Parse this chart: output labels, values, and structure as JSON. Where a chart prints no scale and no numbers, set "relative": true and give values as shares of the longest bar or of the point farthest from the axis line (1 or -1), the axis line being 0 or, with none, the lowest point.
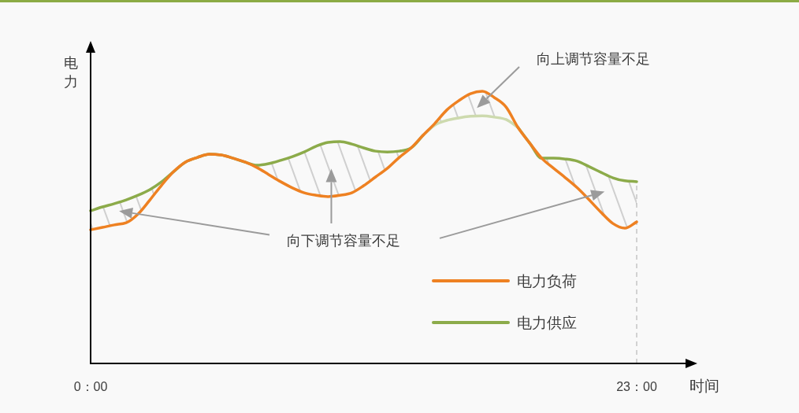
{
  "chart_data": {
    "type": "line",
    "relative": true,
    "xlabel": "时间",
    "ylabel": "电力",
    "tick_labels": "x",
    "legend": "bottom right",
    "categories": [
      "0：00",
      null,
      null,
      null,
      null,
      null,
      null,
      null,
      null,
      null,
      null,
      null,
      null,
      null,
      null,
      null,
      null,
      null,
      null,
      null,
      null,
      null,
      null,
      null,
      null,
      null,
      null,
      null,
      null,
      null,
      null,
      null,
      null,
      null,
      null,
      null,
      null,
      null,
      null,
      null,
      null,
      null,
      null,
      null,
      null,
      null,
      "23：00"
    ],
    "series": [
      {
        "name": "电力负荷",
        "color": "#ee8122",
        "values": [
          0.491,
          0.5,
          0.509,
          0.517,
          0.549,
          0.601,
          0.656,
          0.705,
          0.74,
          0.757,
          0.769,
          0.766,
          0.754,
          0.74,
          0.72,
          0.694,
          0.668,
          0.645,
          0.627,
          0.618,
          0.613,
          0.618,
          0.627,
          0.653,
          0.685,
          0.717,
          0.757,
          0.792,
          0.838,
          0.882,
          0.931,
          0.965,
          0.991,
          1.0,
          0.977,
          0.942,
          0.867,
          0.809,
          0.754,
          0.717,
          0.682,
          0.645,
          0.601,
          0.555,
          0.514,
          0.497,
          0.52
        ]
      },
      {
        "name": "电力供应",
        "color": "#8cab4a",
        "values": [
          0.561,
          0.575,
          0.587,
          0.601,
          0.618,
          0.639,
          0.668,
          0.705,
          0.74,
          0.757,
          0.769,
          0.766,
          0.754,
          0.74,
          0.728,
          0.734,
          0.746,
          0.76,
          0.777,
          0.798,
          0.812,
          0.815,
          0.806,
          0.792,
          0.78,
          0.777,
          0.78,
          0.792,
          0.838,
          null,
          null,
          null,
          null,
          null,
          null,
          null,
          0.867,
          0.809,
          0.754,
          0.754,
          0.751,
          0.743,
          0.723,
          0.702,
          0.682,
          0.671,
          0.668
        ],
        "lower": [
          0.491,
          0.5,
          0.509,
          0.517,
          0.549,
          0.601,
          0.656,
          0.705,
          null,
          null,
          null,
          null,
          null,
          0.74,
          0.72,
          0.694,
          0.668,
          0.645,
          0.627,
          0.618,
          0.613,
          0.618,
          0.627,
          0.653,
          0.685,
          0.717,
          0.757,
          0.792,
          null,
          null,
          null,
          null,
          null,
          null,
          null,
          null,
          null,
          null,
          0.754,
          0.717,
          0.682,
          0.645,
          0.601,
          0.555,
          0.514,
          0.497,
          0.52
        ],
        "upper": [
          0.561,
          0.575,
          0.587,
          0.601,
          0.618,
          0.639,
          0.668,
          0.705,
          null,
          null,
          null,
          null,
          null,
          0.74,
          0.728,
          0.734,
          0.746,
          0.76,
          0.777,
          0.798,
          0.812,
          0.815,
          0.806,
          0.792,
          0.78,
          0.777,
          0.78,
          0.792,
          null,
          null,
          null,
          null,
          null,
          null,
          null,
          null,
          null,
          null,
          0.754,
          0.754,
          0.751,
          0.743,
          0.723,
          0.702,
          0.682,
          0.671,
          0.668
        ]
      },
      {
        "color": "#cddaae",
        "values": [
          null,
          null,
          null,
          null,
          null,
          null,
          null,
          null,
          null,
          null,
          null,
          null,
          null,
          null,
          null,
          null,
          null,
          null,
          null,
          null,
          null,
          null,
          null,
          null,
          null,
          null,
          null,
          null,
          0.838,
          0.876,
          0.893,
          0.902,
          0.908,
          0.91,
          0.905,
          0.896,
          0.867,
          null,
          null,
          null,
          null,
          null,
          null,
          null,
          null,
          null,
          null
        ],
        "lower": [
          null,
          null,
          null,
          null,
          null,
          null,
          null,
          null,
          null,
          null,
          null,
          null,
          null,
          null,
          null,
          null,
          null,
          null,
          null,
          null,
          null,
          null,
          null,
          null,
          null,
          null,
          null,
          null,
          0.838,
          0.876,
          0.893,
          0.902,
          0.908,
          0.91,
          0.905,
          0.896,
          0.867,
          null,
          null,
          null,
          null,
          null,
          null,
          null,
          null,
          null,
          null
        ],
        "upper": [
          null,
          null,
          null,
          null,
          null,
          null,
          null,
          null,
          null,
          null,
          null,
          null,
          null,
          null,
          null,
          null,
          null,
          null,
          null,
          null,
          null,
          null,
          null,
          null,
          null,
          null,
          null,
          null,
          0.838,
          0.882,
          0.931,
          0.965,
          0.991,
          1.0,
          0.977,
          0.942,
          0.867,
          null,
          null,
          null,
          null,
          null,
          null,
          null,
          null,
          null,
          null
        ]
      }
    ],
    "ref_lines": [
      {
        "axis": "x",
        "value": "23：00",
        "color": "#bdbdbd",
        "line_style": "dashed"
      }
    ],
    "annotations": [
      "向上调节容量不足",
      "向下调节容量不足"
    ]
  }
}
